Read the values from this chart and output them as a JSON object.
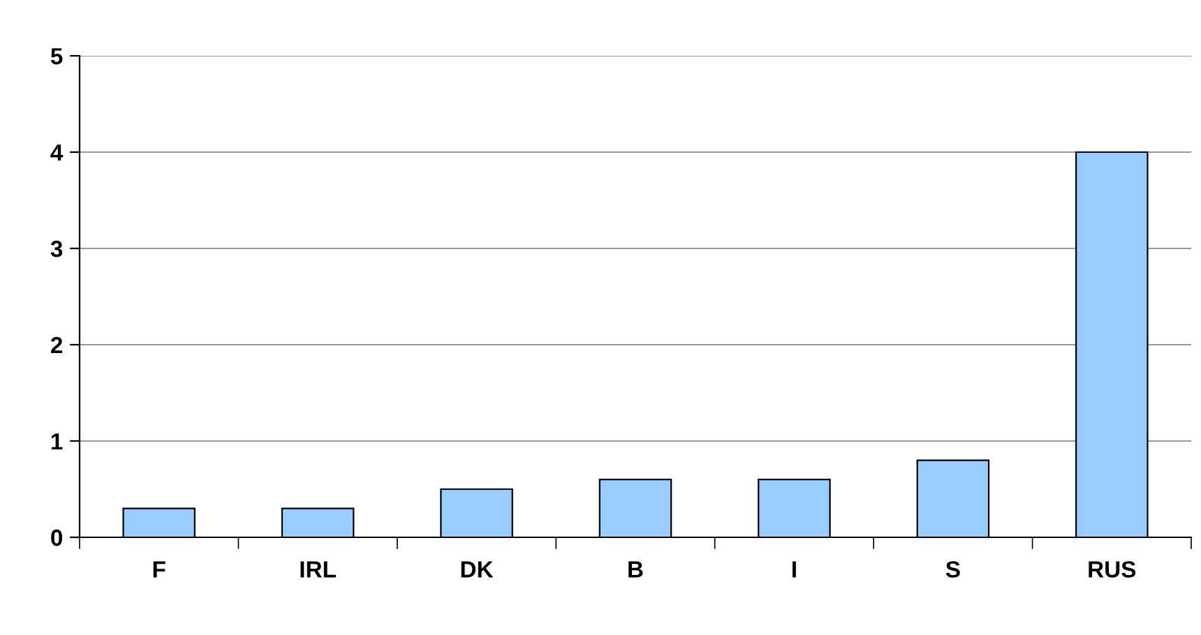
{
  "chart_data": {
    "type": "bar",
    "categories": [
      "F",
      "IRL",
      "DK",
      "B",
      "I",
      "S",
      "RUS"
    ],
    "values": [
      0.3,
      0.3,
      0.5,
      0.6,
      0.6,
      0.8,
      4.0
    ],
    "color": "#99ccff",
    "ylim": [
      0,
      5
    ],
    "yticks": [
      0,
      1,
      2,
      3,
      4,
      5
    ],
    "grid": "y",
    "legend": false
  }
}
